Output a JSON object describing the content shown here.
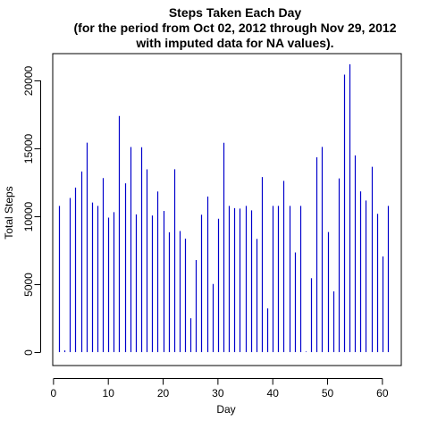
{
  "chart_data": {
    "type": "bar",
    "style": "histogram-lines",
    "title_lines": [
      "Steps Taken Each Day",
      "(for the period from Oct 02, 2012 through Nov 29, 2012",
      "with imputed data for NA values)."
    ],
    "xlabel": "Day",
    "ylabel": "Total Steps",
    "xlim": [
      0,
      62
    ],
    "ylim": [
      0,
      22000
    ],
    "x_ticks": [
      0,
      10,
      20,
      30,
      40,
      50,
      60
    ],
    "y_ticks": [
      0,
      5000,
      10000,
      15000,
      20000
    ],
    "grid": false,
    "legend": "none",
    "color": "#0000cc",
    "x": [
      1,
      2,
      3,
      4,
      5,
      6,
      7,
      8,
      9,
      10,
      11,
      12,
      13,
      14,
      15,
      16,
      17,
      18,
      19,
      20,
      21,
      22,
      23,
      24,
      25,
      26,
      27,
      28,
      29,
      30,
      31,
      32,
      33,
      34,
      35,
      36,
      37,
      38,
      39,
      40,
      41,
      42,
      43,
      44,
      45,
      46,
      47,
      48,
      49,
      50,
      51,
      52,
      53,
      54,
      55,
      56,
      57,
      58,
      59,
      60,
      61
    ],
    "values": [
      10766,
      126,
      11352,
      12116,
      13294,
      15420,
      11015,
      10766,
      12811,
      9900,
      10304,
      17382,
      12426,
      15098,
      10139,
      15084,
      13452,
      10056,
      11829,
      10395,
      8821,
      13460,
      8918,
      8355,
      2492,
      6778,
      10119,
      11458,
      5018,
      9819,
      15414,
      10766,
      10600,
      10571,
      10766,
      10439,
      8334,
      12883,
      3219,
      10766,
      10766,
      12608,
      10765,
      7336,
      10766,
      41,
      5441,
      14339,
      15110,
      8841,
      4472,
      12787,
      20427,
      21194,
      14478,
      11834,
      11162,
      13646,
      10183,
      7047,
      10766
    ]
  }
}
